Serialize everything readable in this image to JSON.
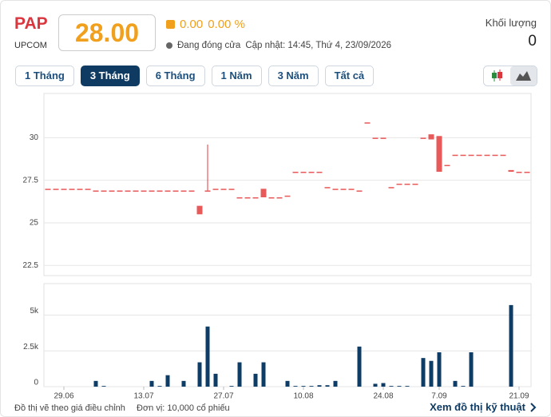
{
  "header": {
    "symbol": "PAP",
    "exchange": "UPCOM",
    "price": "28.00",
    "change": "0.00",
    "change_percent": "0.00 %",
    "status": "Đang đóng cửa",
    "updated": "Cập nhật: 14:45, Thứ 4, 23/09/2026",
    "volume_label": "Khối lượng",
    "volume": "0"
  },
  "range_buttons": [
    "1 Tháng",
    "3 Tháng",
    "6 Tháng",
    "1 Năm",
    "3 Năm",
    "Tất cả"
  ],
  "active_range": 1,
  "footer": {
    "note": "Đồ thị vẽ theo giá điều chỉnh",
    "unit": "Đơn vị: 10,000 cổ phiếu",
    "link": "Xem đồ thị kỹ thuật"
  },
  "chart_data": {
    "type": "candlestick",
    "color": "#e8595a",
    "volume_color": "#0d3c66",
    "categories": [
      null,
      null,
      "29.06",
      null,
      null,
      null,
      null,
      null,
      null,
      null,
      null,
      null,
      "13.07",
      null,
      null,
      null,
      null,
      null,
      null,
      null,
      null,
      null,
      "27.07",
      null,
      null,
      null,
      null,
      null,
      null,
      null,
      null,
      null,
      "10.08",
      null,
      null,
      null,
      null,
      null,
      null,
      null,
      null,
      null,
      "24.08",
      null,
      null,
      null,
      null,
      null,
      null,
      "7.09",
      null,
      null,
      null,
      null,
      null,
      null,
      null,
      null,
      null,
      "21.09",
      null
    ],
    "open": [
      27,
      27,
      27,
      27,
      27,
      27,
      26.9,
      26.9,
      26.9,
      26.9,
      26.9,
      26.9,
      26.9,
      26.9,
      26.9,
      26.9,
      26.9,
      26.9,
      26.9,
      26.0,
      26.9,
      27,
      27,
      27,
      26.5,
      26.5,
      26.5,
      27,
      26.5,
      26.5,
      26.6,
      28,
      28,
      28,
      28,
      27.1,
      27,
      27,
      27,
      26.9,
      30.9,
      30,
      30,
      27.1,
      27.3,
      27.3,
      27.3,
      30,
      30.2,
      30.1,
      28.4,
      29,
      29,
      29,
      29,
      29,
      29,
      29,
      28.1,
      28,
      28
    ],
    "high": [
      27,
      27,
      27,
      27,
      27,
      27,
      26.9,
      26.9,
      26.9,
      26.9,
      26.9,
      26.9,
      26.9,
      26.9,
      26.9,
      26.9,
      26.9,
      26.9,
      26.9,
      26.0,
      29.6,
      27,
      27,
      27,
      26.5,
      26.5,
      26.5,
      27,
      26.5,
      26.5,
      26.6,
      28,
      28,
      28,
      28,
      27.1,
      27,
      27,
      27,
      26.9,
      30.9,
      30,
      30,
      27.1,
      27.3,
      27.3,
      27.3,
      30,
      30.2,
      30.1,
      28.4,
      29,
      29,
      29,
      29,
      29,
      29,
      29,
      28.1,
      28,
      28
    ],
    "low": [
      27,
      27,
      27,
      27,
      27,
      27,
      26.9,
      26.9,
      26.9,
      26.9,
      26.9,
      26.9,
      26.9,
      26.9,
      26.9,
      26.9,
      26.9,
      26.9,
      26.9,
      25.5,
      26.9,
      27,
      27,
      27,
      26.5,
      26.5,
      26.5,
      26.5,
      26.5,
      26.5,
      26.6,
      28,
      28,
      28,
      28,
      27.1,
      27,
      27,
      27,
      26.9,
      30.9,
      30,
      30,
      27.1,
      27.3,
      27.3,
      27.3,
      30,
      29.9,
      28.0,
      28.4,
      29,
      29,
      29,
      29,
      29,
      29,
      29,
      28.0,
      28,
      28
    ],
    "close": [
      27,
      27,
      27,
      27,
      27,
      27,
      26.9,
      26.9,
      26.9,
      26.9,
      26.9,
      26.9,
      26.9,
      26.9,
      26.9,
      26.9,
      26.9,
      26.9,
      26.9,
      25.5,
      26.9,
      27,
      27,
      27,
      26.5,
      26.5,
      26.5,
      26.5,
      26.5,
      26.5,
      26.6,
      28,
      28,
      28,
      28,
      27.1,
      27,
      27,
      27,
      26.9,
      30.9,
      30,
      30,
      27.1,
      27.3,
      27.3,
      27.3,
      30,
      29.9,
      28.0,
      28.4,
      29,
      29,
      29,
      29,
      29,
      29,
      29,
      28.0,
      28,
      28
    ],
    "volume": [
      0,
      0,
      0,
      0,
      0,
      0,
      400,
      50,
      0,
      0,
      0,
      0,
      0,
      400,
      50,
      800,
      0,
      400,
      0,
      1700,
      4200,
      900,
      0,
      50,
      1700,
      0,
      900,
      1700,
      0,
      0,
      400,
      50,
      50,
      50,
      100,
      100,
      400,
      0,
      0,
      2800,
      0,
      200,
      250,
      50,
      50,
      50,
      0,
      2000,
      1800,
      2400,
      0,
      400,
      50,
      2400,
      0,
      0,
      0,
      0,
      5700,
      0,
      0
    ],
    "ylim": [
      21.9,
      32.6
    ],
    "yticks": [
      22.5,
      25,
      27.5,
      30
    ],
    "volume_ylim": [
      0,
      7200
    ],
    "volume_yticks": [
      0,
      {
        "value": 2500,
        "label": "2.5k"
      },
      {
        "value": 5000,
        "label": "5k"
      }
    ],
    "grid": true
  }
}
